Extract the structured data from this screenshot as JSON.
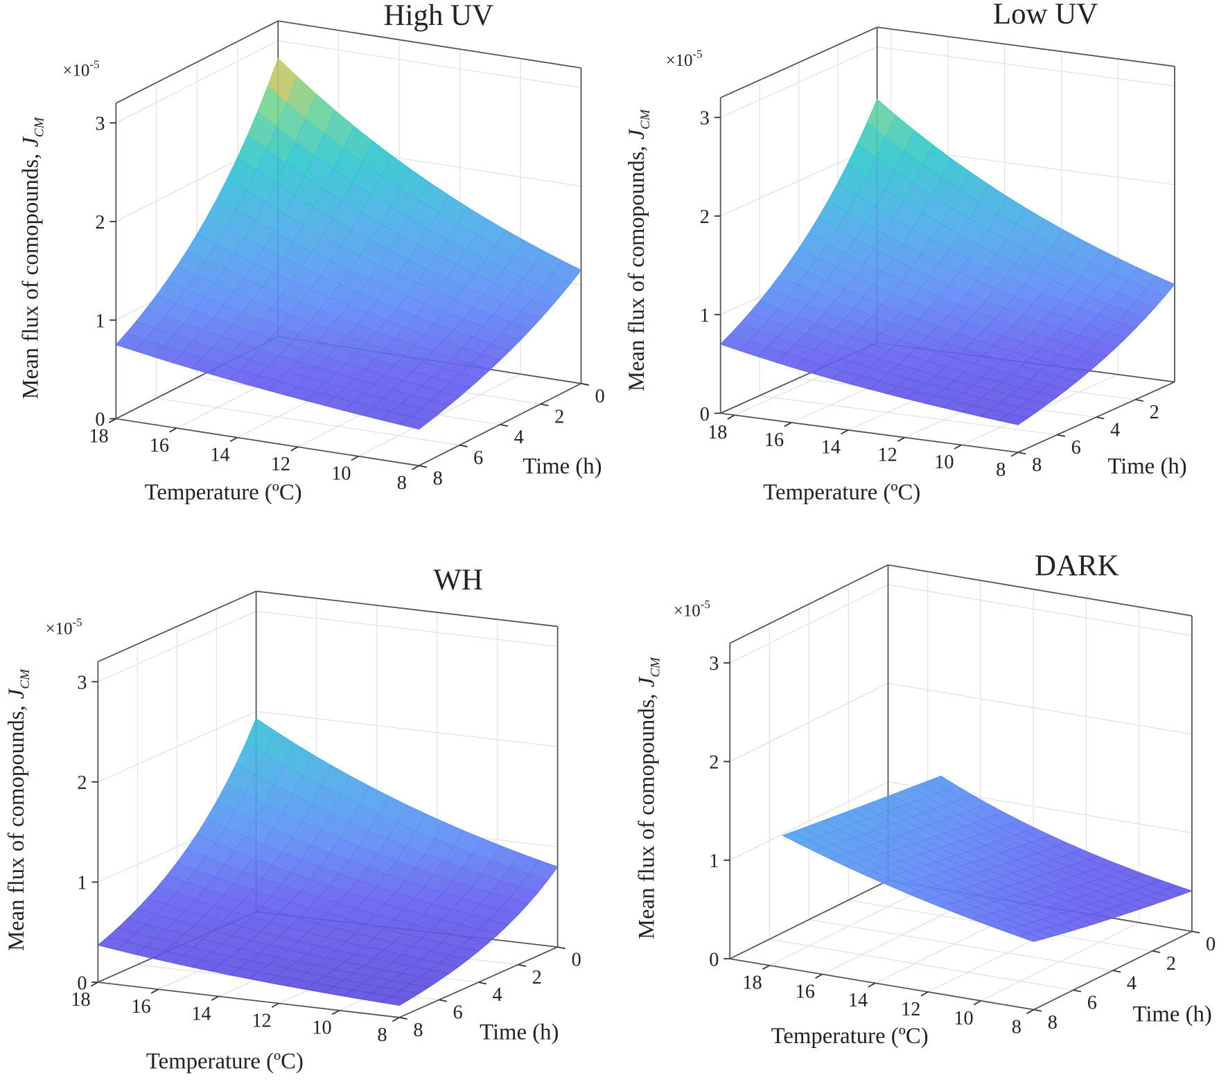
{
  "chart_data": [
    {
      "type": "surface",
      "title": "High UV",
      "xlabel": "Temperature (ºC)",
      "ylabel": "Time (h)",
      "zlabel": "Mean flux of comopounds,",
      "zsymbol": "J",
      "zsubscript": "CM",
      "multiplier": "×10",
      "exponent": "-5",
      "x_range": [
        8,
        18
      ],
      "x_ticks": [
        18,
        16,
        14,
        12,
        10,
        8
      ],
      "y_range": [
        0,
        8
      ],
      "y_ticks": [
        0,
        2,
        4,
        6,
        8
      ],
      "zlim": [
        0,
        3.2
      ],
      "z_ticks": [
        0,
        1,
        2,
        3
      ],
      "surface_x_range": [
        8,
        18
      ],
      "corner_values": {
        "Tmax_t0": 2.82,
        "Tmax_t8": 0.75,
        "T8_t0": 1.15,
        "T8_t8": 0.37
      }
    },
    {
      "type": "surface",
      "title": "Low UV",
      "xlabel": "Temperature (ºC)",
      "ylabel": "Time (h)",
      "zlabel": "Mean flux of comopounds,",
      "zsymbol": "J",
      "zsubscript": "CM",
      "multiplier": "×10",
      "exponent": "-5",
      "x_range": [
        8,
        18.5
      ],
      "x_ticks": [
        18,
        16,
        14,
        12,
        10,
        8
      ],
      "y_range": [
        0,
        8
      ],
      "y_ticks": [
        2,
        4,
        6,
        8
      ],
      "zlim": [
        0,
        3.2
      ],
      "z_ticks": [
        0,
        1,
        2,
        3
      ],
      "surface_x_range": [
        8,
        18.5
      ],
      "corner_values": {
        "Tmax_t0": 2.47,
        "Tmax_t8": 0.7,
        "T8_t0": 0.99,
        "T8_t8": 0.28
      }
    },
    {
      "type": "surface",
      "title": "WH",
      "xlabel": "Temperature (ºC)",
      "ylabel": "Time (h)",
      "zlabel": "Mean flux of comopounds,",
      "zsymbol": "J",
      "zsubscript": "CM",
      "multiplier": "×10",
      "exponent": "-5",
      "x_range": [
        8,
        18
      ],
      "x_ticks": [
        18,
        16,
        14,
        12,
        10,
        8
      ],
      "y_range": [
        0,
        8
      ],
      "y_ticks": [
        0,
        2,
        4,
        6,
        8
      ],
      "zlim": [
        0,
        3.2
      ],
      "z_ticks": [
        0,
        1,
        2,
        3
      ],
      "surface_x_range": [
        8,
        18
      ],
      "corner_values": {
        "Tmax_t0": 1.93,
        "Tmax_t8": 0.37,
        "T8_t0": 0.8,
        "T8_t8": 0.12
      }
    },
    {
      "type": "surface",
      "title": "DARK",
      "xlabel": "Temperature (ºC)",
      "ylabel": "Time (h)",
      "zlabel": "Mean flux of comopounds,",
      "zsymbol": "J",
      "zsubscript": "CM",
      "multiplier": "×10",
      "exponent": "-5",
      "x_range": [
        8,
        19.5
      ],
      "x_ticks": [
        18,
        16,
        14,
        12,
        10,
        8
      ],
      "y_range": [
        0,
        8
      ],
      "y_ticks": [
        0,
        2,
        4,
        6,
        8
      ],
      "zlim": [
        0,
        3.2
      ],
      "z_ticks": [
        0,
        1,
        2,
        3
      ],
      "surface_x_range": [
        8,
        17.5
      ],
      "corner_values": {
        "Tmax_t0": 1.15,
        "Tmax_t8": 1.34,
        "T8_t0": 0.41,
        "T8_t8": 0.69
      }
    }
  ]
}
